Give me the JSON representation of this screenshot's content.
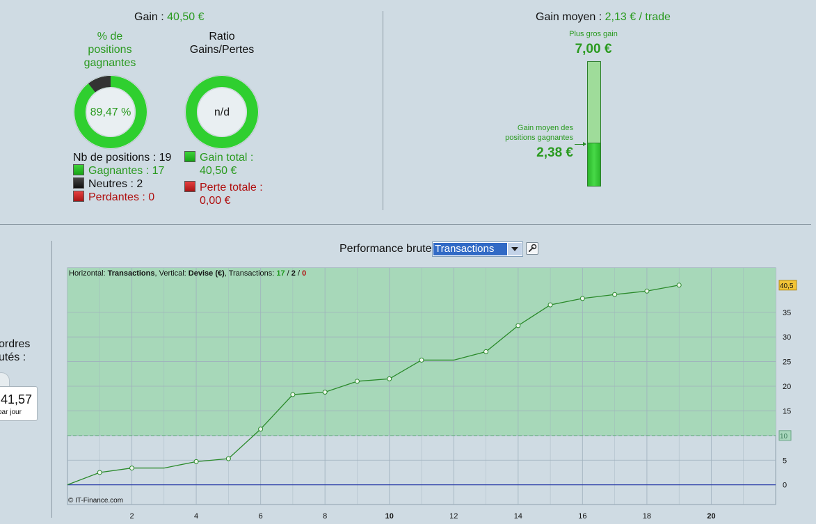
{
  "summary": {
    "gain_label": "Gain :",
    "gain_value": "40,50 €",
    "pct_title_lines": [
      "% de",
      "positions",
      "gagnantes"
    ],
    "pct_value": "89,47 %",
    "pct_fraction": 0.8947,
    "ratio_title_lines": [
      "Ratio",
      "Gains/Pertes"
    ],
    "ratio_value": "n/d",
    "positions": {
      "count_label": "Nb de positions : 19",
      "gagnantes": "Gagnantes : 17",
      "neutres": "Neutres : 2",
      "perdantes": "Perdantes : 0"
    },
    "totals": {
      "gain_total_label": "Gain total :",
      "gain_total_value": "40,50 €",
      "perte_totale_label": "Perte totale :",
      "perte_totale_value": "0,00 €"
    }
  },
  "average": {
    "label": "Gain moyen :",
    "value": "2,13 € / trade",
    "biggest_gain_label": "Plus gros gain",
    "biggest_gain_value": "7,00 €",
    "avg_win_label_lines": [
      "Gain moyen des",
      "positions gagnantes"
    ],
    "avg_win_value": "2,38 €",
    "bar_max": 7.0,
    "bar_level": 2.38
  },
  "left_panel": {
    "label_lines": [
      "ordres",
      "utés :"
    ],
    "value": "41,57",
    "sub": "par jour"
  },
  "performance": {
    "label": "Performance brute",
    "select_value": "Transactions",
    "tool_icon": "wrench-icon"
  },
  "chart_data": {
    "type": "line",
    "header": {
      "h_label": "Horizontal:",
      "h_value": "Transactions",
      "v_label": ", Vertical:",
      "v_value": "Devise (€)",
      "t_label": ", Transactions:",
      "wins": "17",
      "sep1": " / ",
      "neutral": "2",
      "sep2": " / ",
      "losses": "0"
    },
    "x": [
      0,
      1,
      2,
      3,
      4,
      5,
      6,
      7,
      8,
      9,
      10,
      11,
      12,
      13,
      14,
      15,
      16,
      17,
      18,
      19
    ],
    "y": [
      0,
      2.5,
      3.4,
      3.4,
      4.7,
      5.3,
      11.3,
      18.3,
      18.8,
      21.0,
      21.5,
      25.3,
      25.3,
      27.0,
      32.3,
      36.5,
      37.8,
      38.6,
      39.3,
      40.5
    ],
    "markers": [
      false,
      true,
      true,
      false,
      true,
      true,
      true,
      true,
      true,
      true,
      true,
      true,
      false,
      true,
      true,
      true,
      true,
      true,
      true,
      true
    ],
    "xlim": [
      0,
      22
    ],
    "ylim": [
      -4,
      44
    ],
    "x_ticks": [
      "2",
      "4",
      "6",
      "8",
      "10",
      "12",
      "14",
      "16",
      "18",
      "20"
    ],
    "x_tick_values": [
      2,
      4,
      6,
      8,
      10,
      12,
      14,
      16,
      18,
      20
    ],
    "y_ticks": [
      "0",
      "5",
      "10",
      "15",
      "20",
      "25",
      "30",
      "35"
    ],
    "y_tick_values": [
      0,
      5,
      10,
      15,
      20,
      25,
      30,
      35
    ],
    "threshold": 10,
    "threshold_label": "10",
    "last_value_label": "40,5",
    "copyright": "© IT-Finance.com",
    "colors": {
      "plot_bg": "#cfdbe3",
      "zone_fill": "#a7d8b9",
      "line": "#2a8a2a",
      "zero_line": "#2336a8",
      "grid": "#9fb0bd"
    }
  }
}
